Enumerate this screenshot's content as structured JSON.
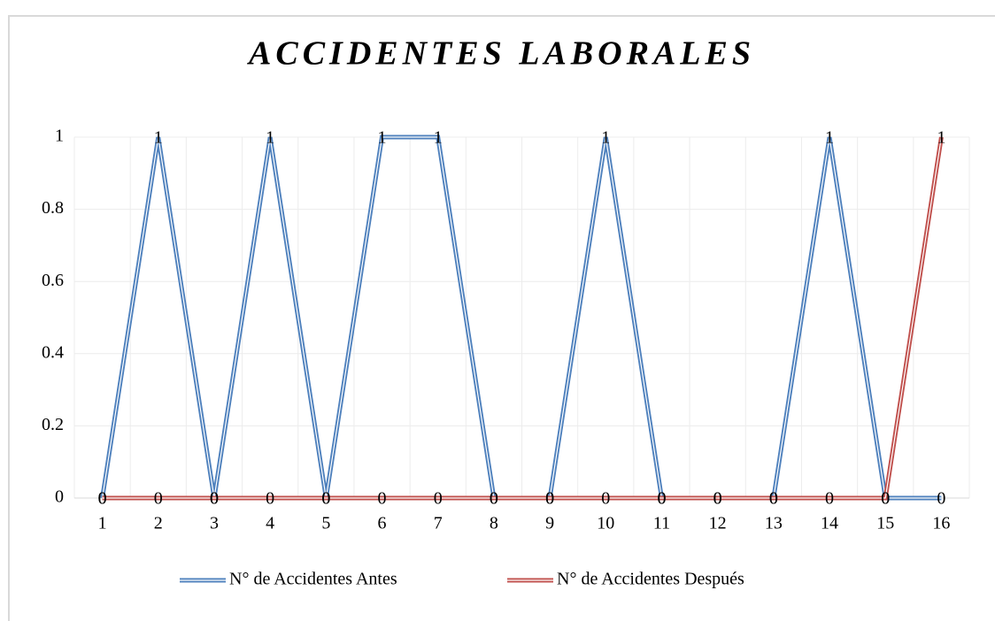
{
  "chart_data": {
    "type": "line",
    "title": "ACCIDENTES LABORALES",
    "categories": [
      1,
      2,
      3,
      4,
      5,
      6,
      7,
      8,
      9,
      10,
      11,
      12,
      13,
      14,
      15,
      16
    ],
    "series": [
      {
        "name": "N° de Accidentes Antes",
        "color": "#4f81bd",
        "values": [
          0,
          1,
          0,
          1,
          0,
          1,
          1,
          0,
          0,
          1,
          0,
          0,
          0,
          1,
          0,
          0
        ]
      },
      {
        "name": "N° de Accidentes Después",
        "color": "#c0504d",
        "values": [
          0,
          0,
          0,
          0,
          0,
          0,
          0,
          0,
          0,
          0,
          0,
          0,
          0,
          0,
          0,
          1
        ]
      }
    ],
    "ylim": [
      0,
      1
    ],
    "yticks": [
      0,
      0.2,
      0.4,
      0.6,
      0.8,
      1
    ],
    "grid": true,
    "legend": "bottom"
  }
}
